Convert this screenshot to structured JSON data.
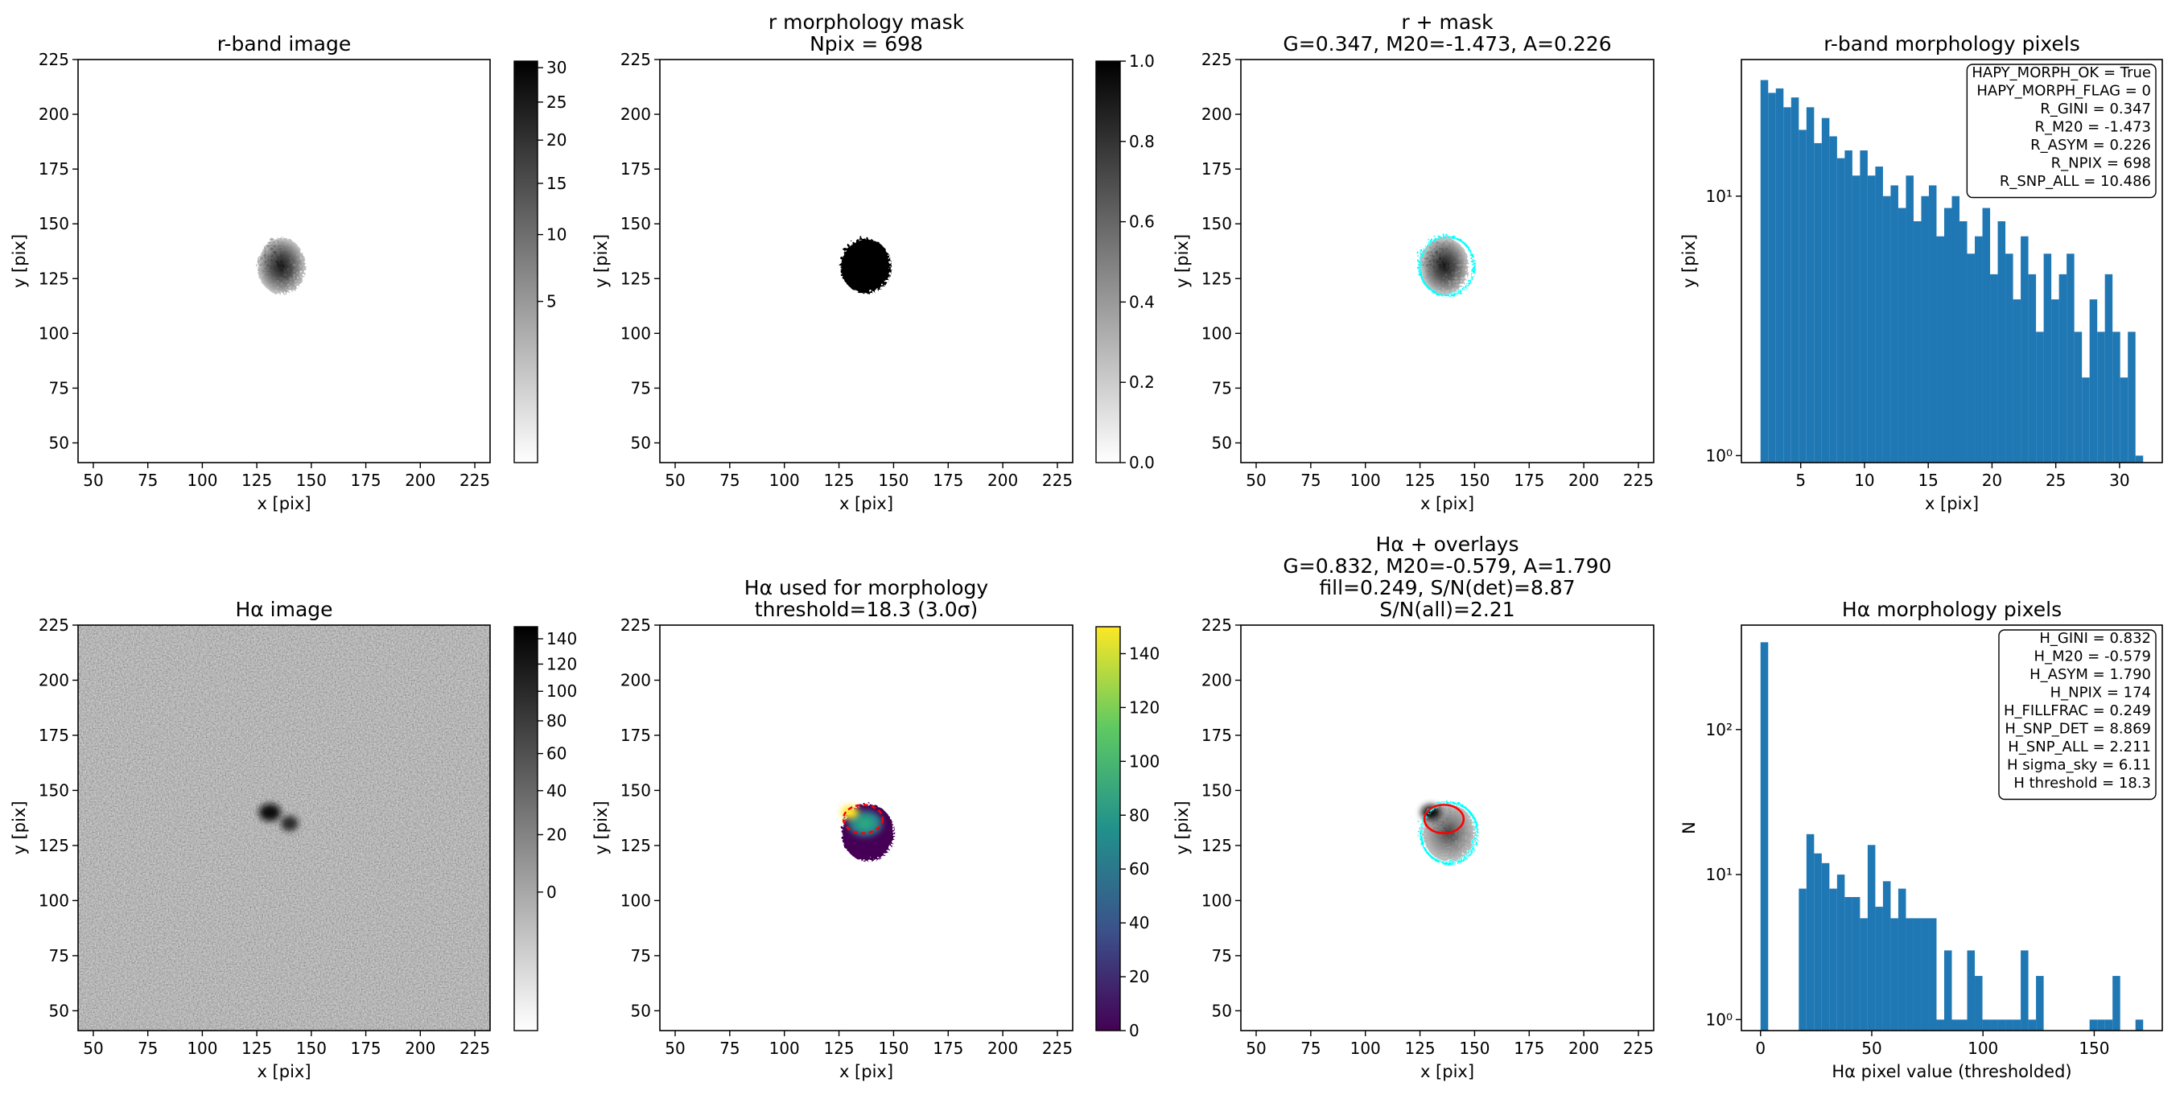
{
  "chart_data": [
    {
      "type": "image",
      "title": [
        "r-band image"
      ],
      "xlabel": "x [pix]",
      "ylabel": "y [pix]",
      "xlim": [
        43,
        232
      ],
      "ylim": [
        41,
        225
      ],
      "xticks": [
        50,
        75,
        100,
        125,
        150,
        175,
        200,
        225
      ],
      "yticks": [
        50,
        75,
        100,
        125,
        150,
        175,
        200,
        225
      ],
      "colorbar": {
        "cmap": "gray_r",
        "lim": [
          0,
          31
        ],
        "stretch": "sqrt",
        "ticks": [
          5,
          10,
          15,
          20,
          25,
          30
        ]
      }
    },
    {
      "type": "image",
      "title": [
        "r morphology mask",
        "Npix = 698"
      ],
      "xlabel": "x [pix]",
      "ylabel": "y [pix]",
      "xlim": [
        43,
        232
      ],
      "ylim": [
        41,
        225
      ],
      "xticks": [
        50,
        75,
        100,
        125,
        150,
        175,
        200,
        225
      ],
      "yticks": [
        50,
        75,
        100,
        125,
        150,
        175,
        200,
        225
      ],
      "colorbar": {
        "cmap": "gray_r",
        "lim": [
          0,
          1
        ],
        "stretch": "linear",
        "ticks": [
          {
            "value": 0,
            "label": "0.0"
          },
          {
            "value": 0.2,
            "label": "0.2"
          },
          {
            "value": 0.4,
            "label": "0.4"
          },
          {
            "value": 0.6,
            "label": "0.6"
          },
          {
            "value": 0.8,
            "label": "0.8"
          },
          {
            "value": 1,
            "label": "1.0"
          }
        ]
      }
    },
    {
      "type": "image",
      "title": [
        "r + mask",
        "G=0.347, M20=-1.473, A=0.226"
      ],
      "xlabel": "x [pix]",
      "ylabel": "y [pix]",
      "xlim": [
        43,
        232
      ],
      "ylim": [
        41,
        225
      ],
      "xticks": [
        50,
        75,
        100,
        125,
        150,
        175,
        200,
        225
      ],
      "yticks": [
        50,
        75,
        100,
        125,
        150,
        175,
        200,
        225
      ]
    },
    {
      "type": "histogram",
      "title": [
        "r-band morphology pixels"
      ],
      "xlabel": "x [pix]",
      "ylabel": "y [pix]",
      "color": "#1f77b4",
      "yscale": "log",
      "bins": [
        1.85,
        2.45,
        3.05,
        3.65,
        4.25,
        4.85,
        5.45,
        6.05,
        6.65,
        7.25,
        7.85,
        8.45,
        9.05,
        9.65,
        10.25,
        10.85,
        11.45,
        12.05,
        12.65,
        13.25,
        13.85,
        14.45,
        15.05,
        15.65,
        16.25,
        16.85,
        17.45,
        18.05,
        18.65,
        19.25,
        19.85,
        20.45,
        21.05,
        21.65,
        22.25,
        22.85,
        23.45,
        24.05,
        24.65,
        25.25,
        25.85,
        26.45,
        27.05,
        27.65,
        28.25,
        28.85,
        29.45,
        30.05,
        30.65,
        31.25,
        31.85
      ],
      "values": [
        28,
        25,
        26,
        22,
        24,
        18,
        22,
        16,
        20,
        17,
        14,
        15,
        12,
        15,
        12,
        13,
        10,
        11,
        9,
        12,
        8,
        10,
        11,
        7,
        9,
        10,
        8,
        6,
        7,
        9,
        5,
        8,
        6,
        4,
        7,
        5,
        3,
        6,
        4,
        5,
        6,
        3,
        2,
        4,
        3,
        5,
        3,
        2,
        3,
        1
      ],
      "xlim": [
        0.35,
        33.35
      ],
      "ylim": [
        0.94,
        33.6
      ],
      "xticks": [
        5,
        10,
        15,
        20,
        25,
        30
      ],
      "yticks": [
        {
          "value": 1,
          "label": "10⁰"
        },
        {
          "value": 10,
          "label": "10¹"
        }
      ],
      "annotation": [
        "HAPY_MORPH_OK = True",
        "HAPY_MORPH_FLAG = 0",
        "R_GINI = 0.347",
        "R_M20 = -1.473",
        "R_ASYM = 0.226",
        "R_NPIX = 698",
        "R_SNP_ALL = 10.486"
      ]
    },
    {
      "type": "image",
      "title": [
        "Hα image"
      ],
      "xlabel": "x [pix]",
      "ylabel": "y [pix]",
      "xlim": [
        43,
        232
      ],
      "ylim": [
        41,
        225
      ],
      "xticks": [
        50,
        75,
        100,
        125,
        150,
        175,
        200,
        225
      ],
      "yticks": [
        50,
        75,
        100,
        125,
        150,
        175,
        200,
        225
      ],
      "colorbar": {
        "cmap": "gray_r",
        "lim": [
          -20,
          150
        ],
        "stretch": "sqrt",
        "ticks": [
          0,
          20,
          40,
          60,
          80,
          100,
          120,
          140
        ]
      }
    },
    {
      "type": "image",
      "title": [
        "Hα used for morphology",
        "threshold=18.3 (3.0σ)"
      ],
      "xlabel": "x [pix]",
      "ylabel": "y [pix]",
      "xlim": [
        43,
        232
      ],
      "ylim": [
        41,
        225
      ],
      "xticks": [
        50,
        75,
        100,
        125,
        150,
        175,
        200,
        225
      ],
      "yticks": [
        50,
        75,
        100,
        125,
        150,
        175,
        200,
        225
      ],
      "colorbar": {
        "cmap": "viridis",
        "lim": [
          0,
          150
        ],
        "stretch": "linear",
        "ticks": [
          0,
          20,
          40,
          60,
          80,
          100,
          120,
          140
        ]
      }
    },
    {
      "type": "image",
      "title": [
        "Hα + overlays",
        "G=0.832, M20=-0.579, A=1.790",
        "fill=0.249, S/N(det)=8.87",
        "S/N(all)=2.21"
      ],
      "xlabel": "x [pix]",
      "ylabel": "y [pix]",
      "xlim": [
        43,
        232
      ],
      "ylim": [
        41,
        225
      ],
      "xticks": [
        50,
        75,
        100,
        125,
        150,
        175,
        200,
        225
      ],
      "yticks": [
        50,
        75,
        100,
        125,
        150,
        175,
        200,
        225
      ]
    },
    {
      "type": "histogram",
      "title": [
        "Hα morphology pixels"
      ],
      "xlabel": "Hα pixel value (thresholded)",
      "ylabel": "N",
      "color": "#1f77b4",
      "yscale": "log",
      "bins": [
        0,
        3.44,
        6.88,
        10.32,
        13.76,
        17.2,
        20.64,
        24.08,
        27.52,
        30.96,
        34.4,
        37.84,
        41.28,
        44.72,
        48.16,
        51.6,
        55.04,
        58.48,
        61.92,
        65.36,
        68.8,
        72.24,
        75.68,
        79.12,
        82.56,
        86,
        89.44,
        92.88,
        96.32,
        99.76,
        103.2,
        106.64,
        110.08,
        113.52,
        116.96,
        120.4,
        123.84,
        127.28,
        130.72,
        134.16,
        137.6,
        141.04,
        144.48,
        147.92,
        151.36,
        154.8,
        158.24,
        161.68,
        165.12,
        168.56,
        172
      ],
      "values": [
        400,
        0,
        0,
        0,
        0,
        8,
        19,
        14,
        12,
        8,
        10,
        7,
        7,
        5,
        16,
        6,
        9,
        5,
        8,
        5,
        5,
        5,
        5,
        1,
        3,
        1,
        1,
        3,
        2,
        1,
        1,
        1,
        1,
        1,
        3,
        1,
        2,
        0,
        0,
        0,
        0,
        0,
        0,
        1,
        1,
        1,
        2,
        0,
        0,
        1
      ],
      "xlim": [
        -8.6,
        180.6
      ],
      "ylim": [
        0.84,
        525
      ],
      "xticks": [
        0,
        50,
        100,
        150
      ],
      "yticks": [
        {
          "value": 1,
          "label": "10⁰"
        },
        {
          "value": 10,
          "label": "10¹"
        },
        {
          "value": 100,
          "label": "10²"
        }
      ],
      "annotation": [
        "H_GINI = 0.832",
        "H_M20 = -0.579",
        "H_ASYM = 1.790",
        "H_NPIX = 174",
        "H_FILLFRAC = 0.249",
        "H_SNP_DET = 8.869",
        "H_SNP_ALL = 2.211",
        "H sigma_sky = 6.11",
        "H threshold = 18.3"
      ]
    }
  ]
}
